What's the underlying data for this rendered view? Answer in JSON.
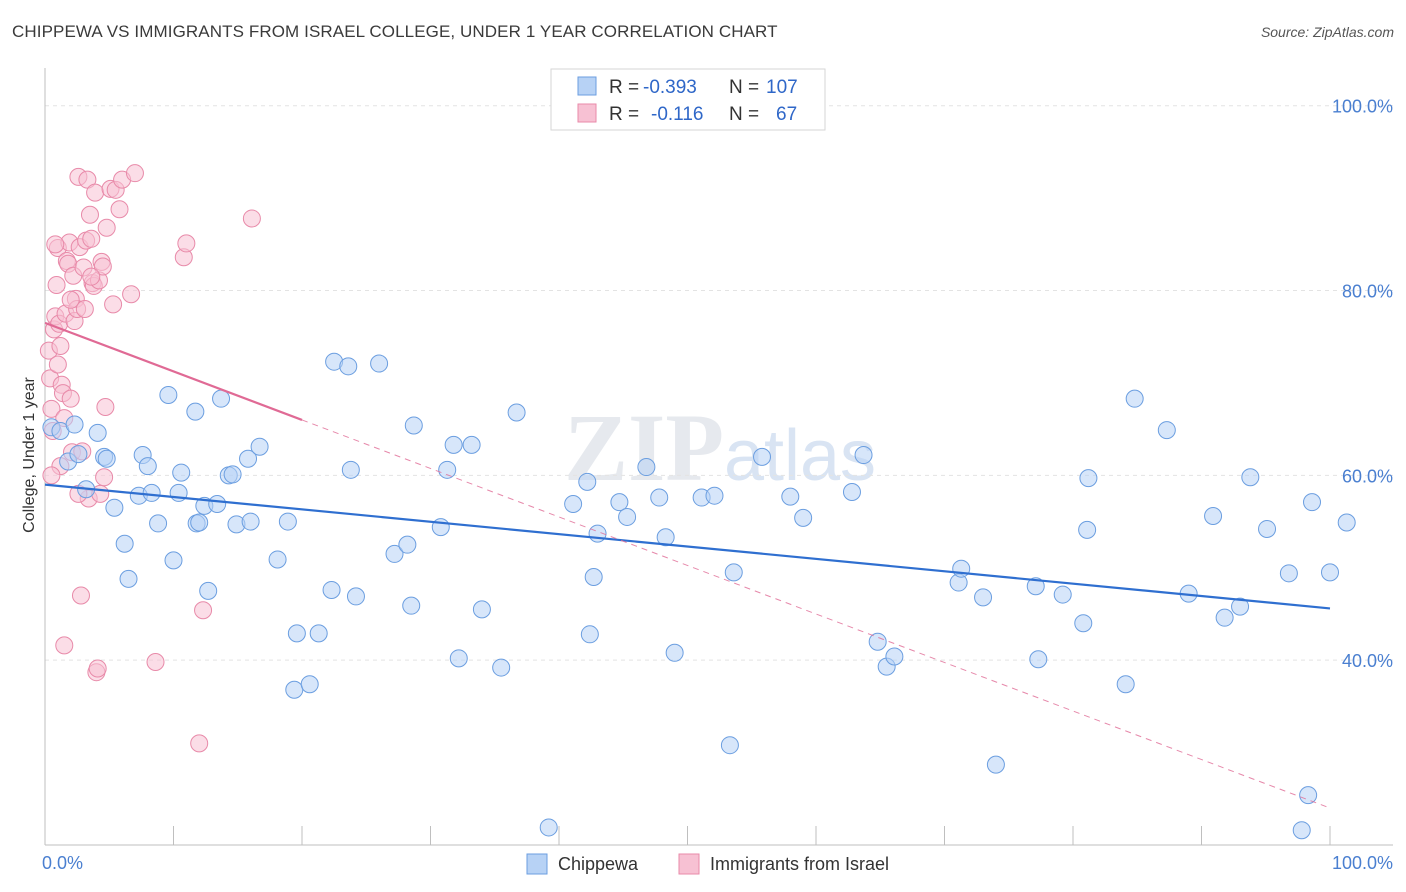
{
  "title": "CHIPPEWA VS IMMIGRANTS FROM ISRAEL COLLEGE, UNDER 1 YEAR CORRELATION CHART",
  "source": "Source: ZipAtlas.com",
  "watermark": "ZIPatlas",
  "colors": {
    "blue_fill": "#b7d2f5",
    "blue_stroke": "#6b9ee0",
    "blue_line": "#2f6fd0",
    "pink_fill": "#f7c1d3",
    "pink_stroke": "#e88aa9",
    "pink_line": "#e06a95",
    "value_text": "#2f67c8"
  },
  "legend": {
    "rows": [
      {
        "r_label": "R =",
        "r_value": "-0.393",
        "n_label": "N =",
        "n_value": "107"
      },
      {
        "r_label": "R =",
        "r_value": "-0.116",
        "n_label": "N =",
        "n_value": "67"
      }
    ]
  },
  "chart_data": {
    "type": "scatter",
    "title": "CHIPPEWA VS IMMIGRANTS FROM ISRAEL COLLEGE, UNDER 1 YEAR CORRELATION CHART",
    "xlabel": "",
    "ylabel": "College, Under 1 year",
    "xlim": [
      0,
      100
    ],
    "ylim": [
      20,
      103
    ],
    "x_tick_labels": [
      "0.0%",
      "100.0%"
    ],
    "y_tick_labels": [
      "40.0%",
      "60.0%",
      "80.0%",
      "100.0%"
    ],
    "y_ticks": [
      40,
      60,
      80,
      100
    ],
    "series": [
      {
        "name": "Chippewa",
        "r": -0.393,
        "n": 107,
        "trend": {
          "x0": 0,
          "y0": 59.0,
          "x1": 100,
          "y1": 45.6
        },
        "points": [
          [
            0.5,
            65.2
          ],
          [
            1.2,
            64.8
          ],
          [
            2.3,
            65.5
          ],
          [
            4.1,
            64.6
          ],
          [
            1.8,
            61.5
          ],
          [
            4.6,
            62.0
          ],
          [
            3.2,
            58.5
          ],
          [
            4.8,
            61.8
          ],
          [
            5.4,
            56.5
          ],
          [
            6.2,
            52.6
          ],
          [
            6.5,
            48.8
          ],
          [
            7.3,
            57.8
          ],
          [
            7.6,
            62.2
          ],
          [
            8.0,
            61.0
          ],
          [
            8.3,
            58.1
          ],
          [
            8.8,
            54.8
          ],
          [
            9.6,
            68.7
          ],
          [
            10.0,
            50.8
          ],
          [
            10.4,
            58.1
          ],
          [
            10.6,
            60.3
          ],
          [
            11.7,
            66.9
          ],
          [
            11.8,
            54.8
          ],
          [
            12.4,
            56.7
          ],
          [
            12.7,
            47.5
          ],
          [
            13.4,
            56.9
          ],
          [
            13.7,
            68.3
          ],
          [
            14.3,
            60.0
          ],
          [
            14.6,
            60.1
          ],
          [
            14.9,
            54.7
          ],
          [
            15.8,
            61.8
          ],
          [
            16.0,
            55.0
          ],
          [
            16.7,
            63.1
          ],
          [
            18.1,
            50.9
          ],
          [
            18.9,
            55.0
          ],
          [
            19.4,
            36.8
          ],
          [
            19.6,
            42.9
          ],
          [
            20.6,
            37.4
          ],
          [
            21.3,
            42.9
          ],
          [
            22.3,
            47.6
          ],
          [
            22.5,
            72.3
          ],
          [
            23.6,
            71.8
          ],
          [
            23.8,
            60.6
          ],
          [
            24.2,
            46.9
          ],
          [
            26.0,
            72.1
          ],
          [
            27.2,
            51.5
          ],
          [
            28.2,
            52.5
          ],
          [
            28.5,
            45.9
          ],
          [
            28.7,
            65.4
          ],
          [
            30.8,
            54.4
          ],
          [
            31.3,
            60.6
          ],
          [
            31.8,
            63.3
          ],
          [
            32.2,
            40.2
          ],
          [
            33.2,
            63.3
          ],
          [
            34.0,
            45.5
          ],
          [
            35.5,
            39.2
          ],
          [
            36.7,
            66.8
          ],
          [
            39.2,
            21.9
          ],
          [
            41.1,
            56.9
          ],
          [
            42.2,
            59.3
          ],
          [
            42.4,
            42.8
          ],
          [
            42.7,
            49.0
          ],
          [
            43.0,
            53.7
          ],
          [
            44.7,
            57.1
          ],
          [
            45.3,
            55.5
          ],
          [
            46.8,
            60.9
          ],
          [
            47.8,
            57.6
          ],
          [
            48.3,
            53.3
          ],
          [
            49.0,
            40.8
          ],
          [
            51.1,
            57.6
          ],
          [
            52.1,
            57.8
          ],
          [
            53.3,
            30.8
          ],
          [
            53.6,
            49.5
          ],
          [
            55.8,
            62.0
          ],
          [
            58.0,
            57.7
          ],
          [
            59.0,
            55.4
          ],
          [
            62.8,
            58.2
          ],
          [
            63.7,
            62.2
          ],
          [
            64.8,
            42.0
          ],
          [
            65.5,
            39.3
          ],
          [
            66.1,
            40.4
          ],
          [
            71.1,
            48.4
          ],
          [
            71.3,
            49.9
          ],
          [
            73.0,
            46.8
          ],
          [
            74.0,
            28.7
          ],
          [
            77.1,
            48.0
          ],
          [
            77.3,
            40.1
          ],
          [
            79.2,
            47.1
          ],
          [
            80.8,
            44.0
          ],
          [
            81.1,
            54.1
          ],
          [
            81.2,
            59.7
          ],
          [
            84.1,
            37.4
          ],
          [
            84.8,
            68.3
          ],
          [
            87.3,
            64.9
          ],
          [
            89.0,
            47.2
          ],
          [
            90.9,
            55.6
          ],
          [
            91.8,
            44.6
          ],
          [
            93.0,
            45.8
          ],
          [
            93.8,
            59.8
          ],
          [
            95.1,
            54.2
          ],
          [
            96.8,
            49.4
          ],
          [
            98.6,
            57.1
          ],
          [
            100.0,
            49.5
          ],
          [
            101.3,
            54.9
          ],
          [
            98.3,
            25.4
          ],
          [
            97.8,
            21.6
          ],
          [
            2.6,
            62.3
          ],
          [
            12.0,
            54.9
          ]
        ]
      },
      {
        "name": "Immigrants from Israel",
        "r": -0.116,
        "n": 67,
        "trend": {
          "x0": 0,
          "y0": 76.5,
          "x1": 20,
          "y1": 66.0,
          "dashed_to": {
            "x": 100,
            "y": 24.0
          }
        },
        "points": [
          [
            0.3,
            73.5
          ],
          [
            0.4,
            70.5
          ],
          [
            0.5,
            67.2
          ],
          [
            0.6,
            64.8
          ],
          [
            0.7,
            75.8
          ],
          [
            0.8,
            77.2
          ],
          [
            0.9,
            80.6
          ],
          [
            1.0,
            84.6
          ],
          [
            1.1,
            76.4
          ],
          [
            1.2,
            74.0
          ],
          [
            1.3,
            69.8
          ],
          [
            1.4,
            68.9
          ],
          [
            1.5,
            66.2
          ],
          [
            1.6,
            77.5
          ],
          [
            1.7,
            83.2
          ],
          [
            1.8,
            82.9
          ],
          [
            1.9,
            85.2
          ],
          [
            2.0,
            68.3
          ],
          [
            2.1,
            62.5
          ],
          [
            2.2,
            81.6
          ],
          [
            2.3,
            76.7
          ],
          [
            2.4,
            79.1
          ],
          [
            2.5,
            78.0
          ],
          [
            2.6,
            92.3
          ],
          [
            2.7,
            84.7
          ],
          [
            2.8,
            47.0
          ],
          [
            2.9,
            62.6
          ],
          [
            3.0,
            82.5
          ],
          [
            3.1,
            78.0
          ],
          [
            3.2,
            85.4
          ],
          [
            3.3,
            92.0
          ],
          [
            3.4,
            57.5
          ],
          [
            3.5,
            88.2
          ],
          [
            3.6,
            85.6
          ],
          [
            3.7,
            80.8
          ],
          [
            3.8,
            80.5
          ],
          [
            3.9,
            90.6
          ],
          [
            4.0,
            38.7
          ],
          [
            4.1,
            39.1
          ],
          [
            4.2,
            81.1
          ],
          [
            4.3,
            58.0
          ],
          [
            4.4,
            83.1
          ],
          [
            4.5,
            82.6
          ],
          [
            4.6,
            59.8
          ],
          [
            4.7,
            67.4
          ],
          [
            4.8,
            86.8
          ],
          [
            5.1,
            91.0
          ],
          [
            5.3,
            78.5
          ],
          [
            5.5,
            90.9
          ],
          [
            5.8,
            88.8
          ],
          [
            6.0,
            92.0
          ],
          [
            6.7,
            79.6
          ],
          [
            7.0,
            92.7
          ],
          [
            8.6,
            39.8
          ],
          [
            10.8,
            83.6
          ],
          [
            11.0,
            85.1
          ],
          [
            12.0,
            31.0
          ],
          [
            12.3,
            45.4
          ],
          [
            16.1,
            87.8
          ],
          [
            1.5,
            41.6
          ],
          [
            1.2,
            61.0
          ],
          [
            0.8,
            85.0
          ],
          [
            2.0,
            79.0
          ],
          [
            1.0,
            72.0
          ],
          [
            3.6,
            81.5
          ],
          [
            2.6,
            58.0
          ],
          [
            0.5,
            60.0
          ]
        ]
      }
    ]
  },
  "bottom_legend": [
    "Chippewa",
    "Immigrants from Israel"
  ]
}
